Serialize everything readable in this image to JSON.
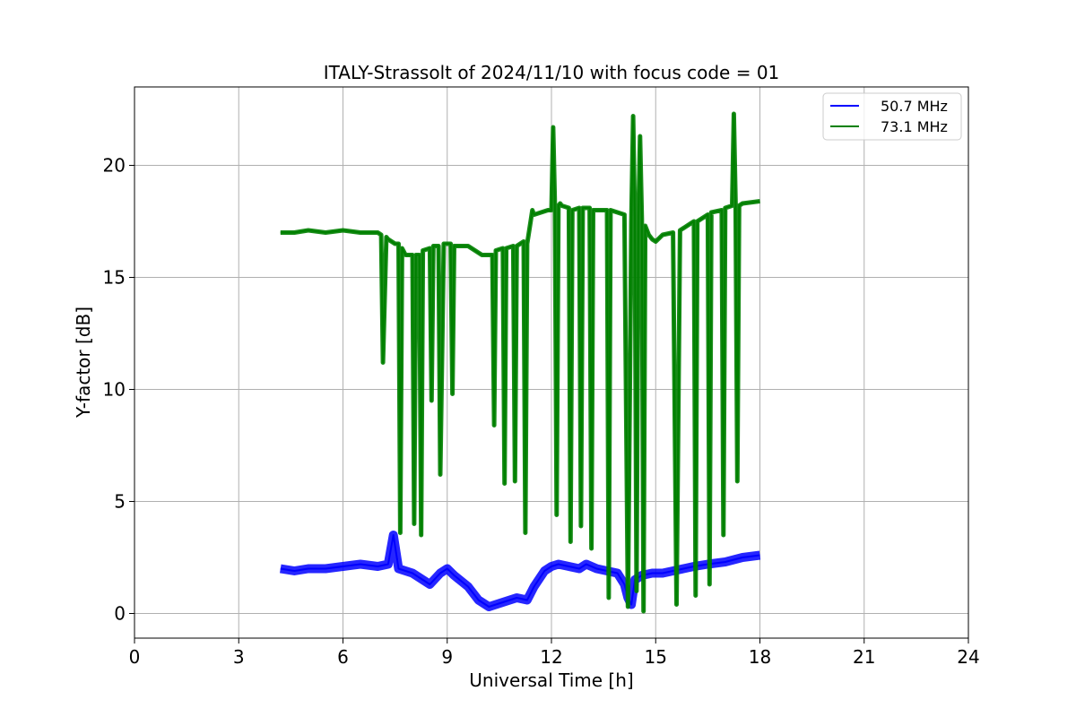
{
  "chart_data": {
    "type": "line",
    "title": "ITALY-Strassolt of 2024/11/10 with focus code = 01",
    "xlabel": "Universal Time [h]",
    "ylabel": "Y-factor [dB]",
    "xlim": [
      0,
      24
    ],
    "ylim": [
      -1.1,
      23.5
    ],
    "xticks": [
      0,
      3,
      6,
      9,
      12,
      15,
      18,
      21,
      24
    ],
    "yticks": [
      0,
      5,
      10,
      15,
      20
    ],
    "grid": true,
    "legend_position": "top-right",
    "series": [
      {
        "name": "50.7 MHz",
        "color": "#0000ff",
        "x": [
          4.2,
          4.6,
          5.0,
          5.5,
          6.0,
          6.5,
          7.0,
          7.3,
          7.45,
          7.6,
          8.0,
          8.5,
          8.8,
          9.0,
          9.2,
          9.6,
          9.9,
          10.2,
          10.6,
          11.0,
          11.3,
          11.5,
          11.8,
          12.0,
          12.2,
          12.5,
          12.8,
          13.0,
          13.3,
          13.6,
          13.9,
          14.1,
          14.2,
          14.3,
          14.4,
          14.6,
          14.9,
          15.2,
          15.5,
          15.8,
          16.1,
          16.5,
          17.0,
          17.5,
          18.0
        ],
        "y": [
          2.0,
          1.9,
          2.0,
          2.0,
          2.1,
          2.2,
          2.1,
          2.2,
          3.5,
          2.0,
          1.8,
          1.3,
          1.8,
          2.0,
          1.7,
          1.2,
          0.6,
          0.3,
          0.5,
          0.7,
          0.6,
          1.2,
          1.9,
          2.1,
          2.2,
          2.1,
          2.0,
          2.2,
          2.0,
          1.9,
          1.8,
          1.3,
          0.7,
          0.4,
          1.5,
          1.7,
          1.8,
          1.8,
          1.9,
          2.0,
          2.1,
          2.2,
          2.3,
          2.5,
          2.6
        ]
      },
      {
        "name": "73.1 MHz",
        "color": "#008000",
        "x": [
          4.2,
          4.6,
          5.0,
          5.5,
          6.0,
          6.5,
          7.0,
          7.1,
          7.15,
          7.25,
          7.3,
          7.5,
          7.6,
          7.65,
          7.7,
          7.8,
          8.0,
          8.05,
          8.1,
          8.2,
          8.25,
          8.3,
          8.5,
          8.55,
          8.6,
          8.75,
          8.8,
          8.9,
          9.1,
          9.15,
          9.2,
          9.6,
          10.0,
          10.3,
          10.35,
          10.4,
          10.6,
          10.65,
          10.7,
          10.9,
          10.95,
          11.0,
          11.2,
          11.25,
          11.3,
          11.4,
          11.45,
          11.5,
          11.9,
          12.0,
          12.05,
          12.1,
          12.15,
          12.2,
          12.25,
          12.3,
          12.5,
          12.55,
          12.6,
          12.8,
          12.85,
          12.9,
          13.1,
          13.15,
          13.2,
          13.6,
          13.65,
          13.7,
          14.1,
          14.2,
          14.3,
          14.35,
          14.4,
          14.45,
          14.5,
          14.55,
          14.6,
          14.65,
          14.7,
          14.8,
          14.9,
          15.0,
          15.2,
          15.5,
          15.6,
          15.7,
          15.8,
          16.0,
          16.1,
          16.15,
          16.2,
          16.5,
          16.55,
          16.6,
          16.9,
          16.95,
          17.0,
          17.2,
          17.25,
          17.3,
          17.35,
          17.4,
          17.5,
          18.0
        ],
        "y": [
          17.0,
          17.0,
          17.1,
          17.0,
          17.1,
          17.0,
          17.0,
          16.9,
          11.2,
          16.8,
          16.7,
          16.5,
          16.5,
          3.6,
          16.3,
          16.0,
          16.0,
          4.0,
          16.0,
          16.0,
          3.5,
          16.2,
          16.3,
          9.5,
          16.4,
          16.4,
          6.2,
          16.5,
          16.5,
          9.8,
          16.4,
          16.4,
          16.0,
          16.0,
          8.4,
          16.2,
          16.3,
          5.8,
          16.3,
          16.4,
          5.9,
          16.4,
          16.6,
          3.6,
          16.5,
          17.5,
          18.0,
          17.8,
          18.0,
          18.0,
          21.7,
          18.1,
          4.4,
          18.2,
          18.3,
          18.2,
          18.1,
          3.2,
          18.0,
          18.1,
          3.9,
          18.1,
          18.1,
          2.9,
          18.0,
          18.0,
          0.7,
          18.0,
          17.8,
          0.3,
          17.5,
          22.2,
          17.6,
          1.0,
          17.5,
          21.3,
          17.6,
          0.1,
          17.3,
          16.9,
          16.7,
          16.6,
          16.9,
          17.0,
          0.4,
          17.1,
          17.2,
          17.4,
          17.5,
          0.8,
          17.5,
          17.8,
          1.3,
          17.9,
          18.0,
          3.5,
          18.1,
          18.2,
          22.3,
          18.2,
          5.9,
          18.2,
          18.3,
          18.4
        ]
      }
    ]
  }
}
